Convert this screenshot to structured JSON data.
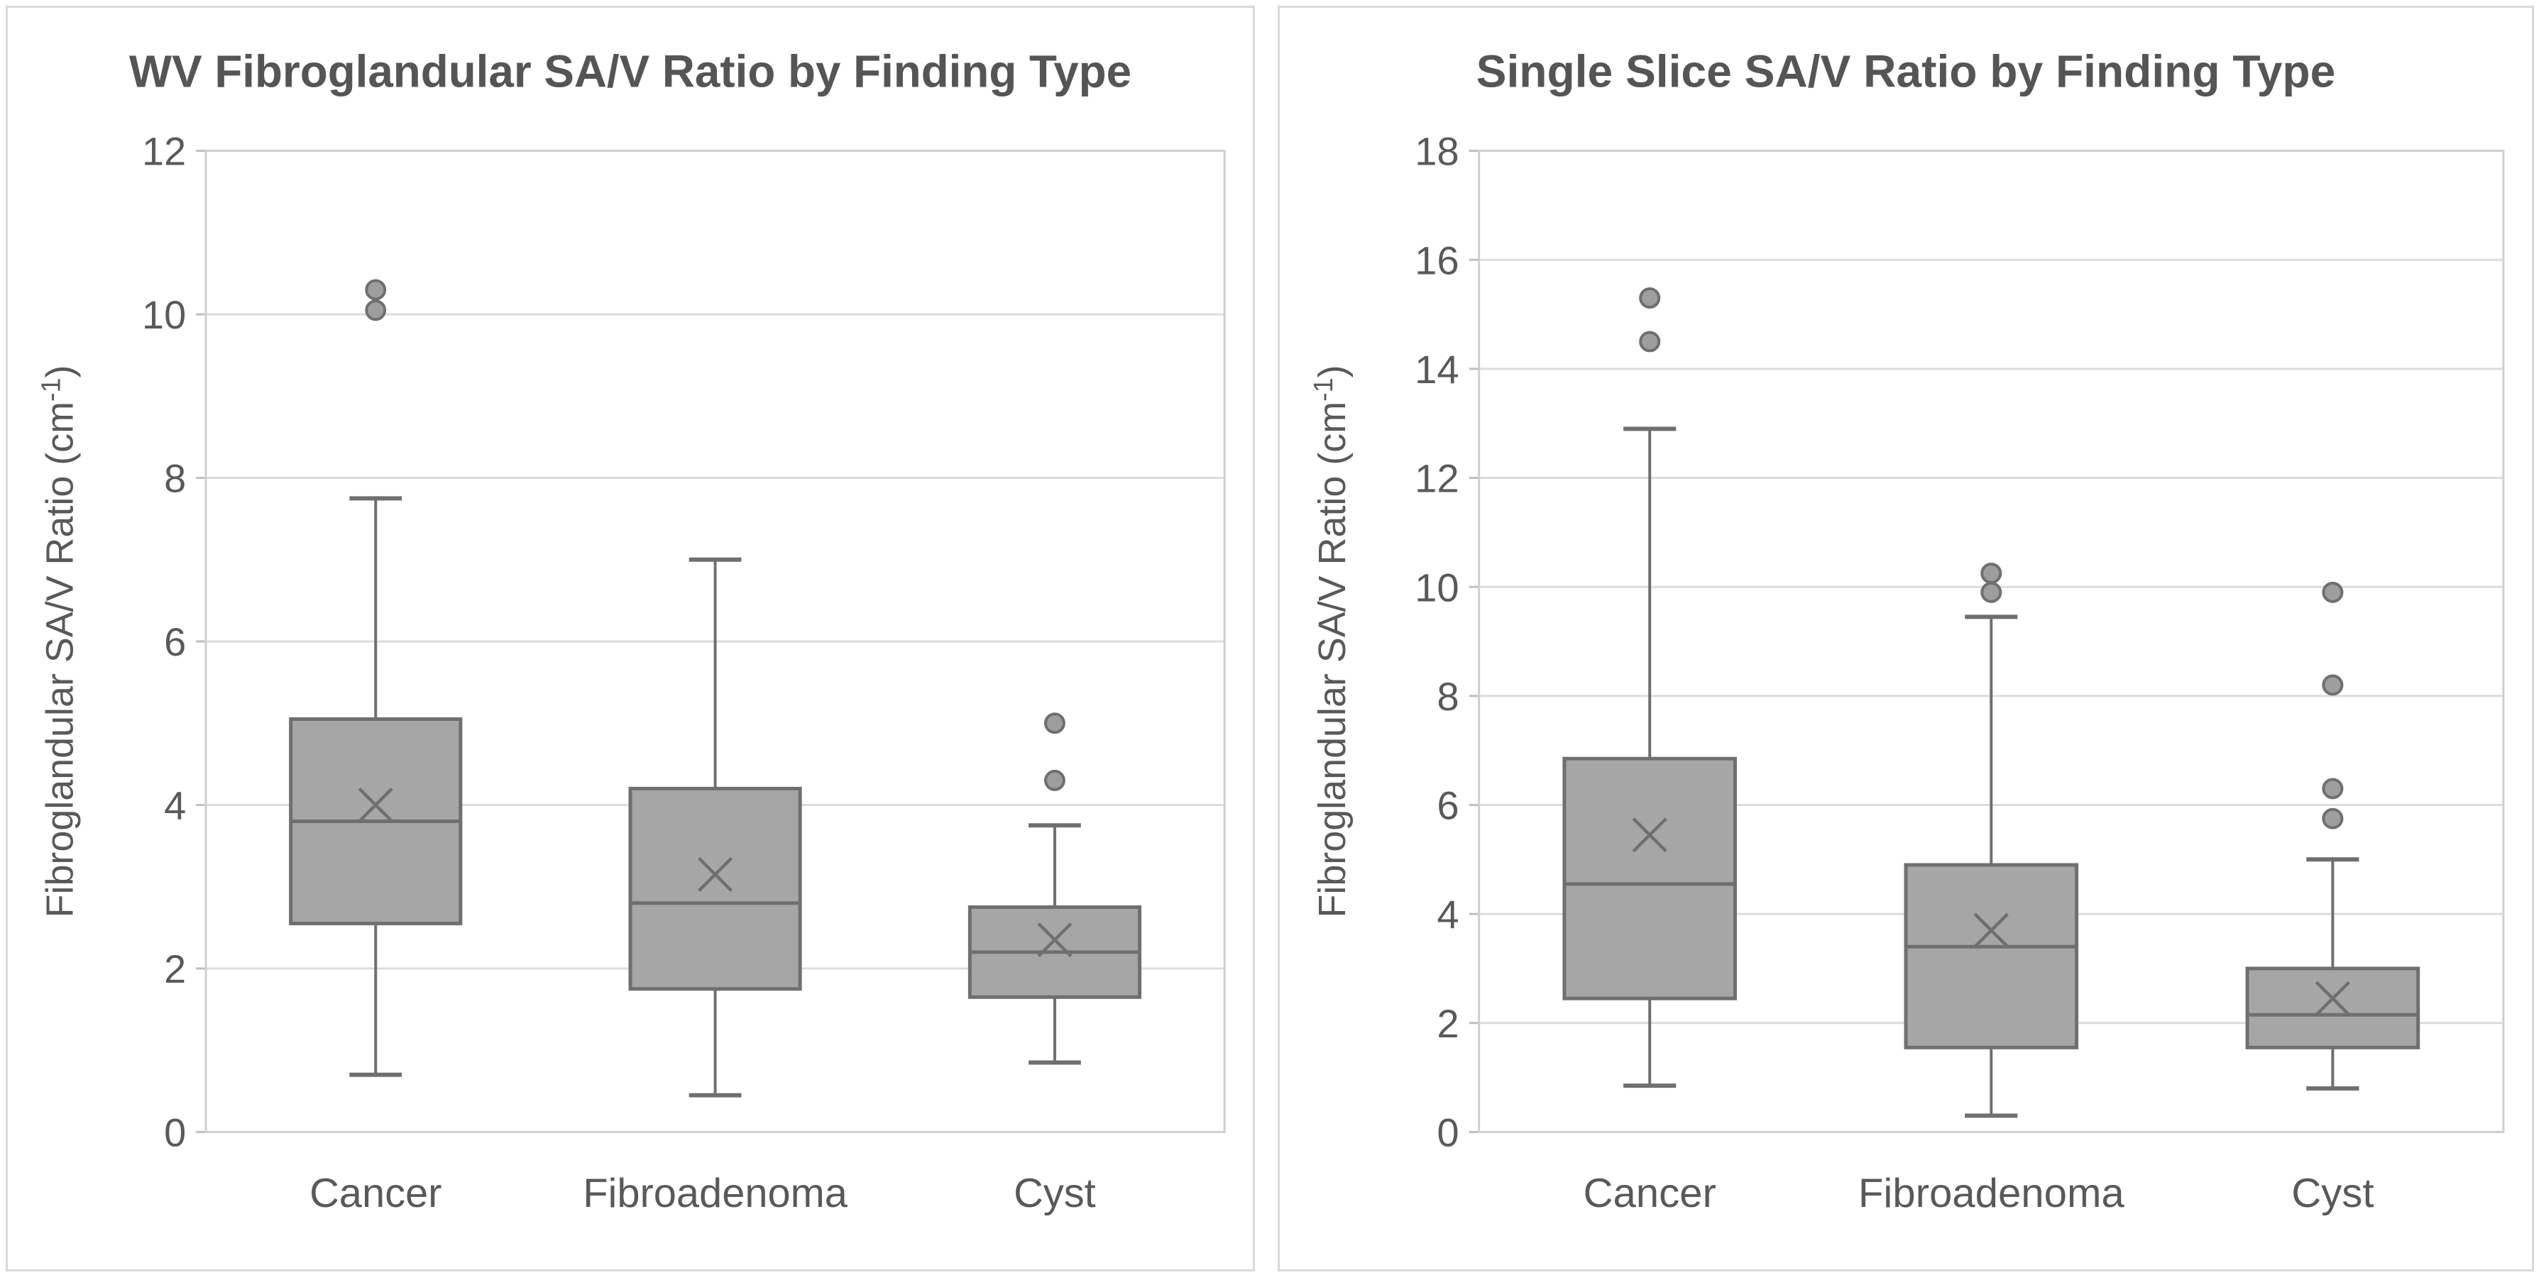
{
  "page": {
    "background": "#ffffff"
  },
  "chart_data": [
    {
      "type": "boxplot",
      "title": "WV Fibroglandular SA/V Ratio by Finding Type",
      "ylabel": "Fibroglandular SA/V Ratio (cm⁻¹)",
      "ylabel_parts": {
        "base": "Fibroglandular SA/V Ratio (cm",
        "sup": "-1",
        "close": ")"
      },
      "xlabel": "",
      "categories": [
        "Cancer",
        "Fibroadenoma",
        "Cyst"
      ],
      "ylim": [
        0,
        12
      ],
      "ytick_step": 2,
      "ytick_labels": [
        "0",
        "2",
        "4",
        "6",
        "8",
        "10",
        "12"
      ],
      "grid": true,
      "legend": "none",
      "series": [
        {
          "name": "Cancer",
          "whisker_low": 0.7,
          "q1": 2.55,
          "median": 3.8,
          "mean": 4.0,
          "q3": 5.05,
          "whisker_high": 7.75,
          "outliers": [
            10.05,
            10.3
          ]
        },
        {
          "name": "Fibroadenoma",
          "whisker_low": 0.45,
          "q1": 1.75,
          "median": 2.8,
          "mean": 3.15,
          "q3": 4.2,
          "whisker_high": 7.0,
          "outliers": []
        },
        {
          "name": "Cyst",
          "whisker_low": 0.85,
          "q1": 1.65,
          "median": 2.2,
          "mean": 2.35,
          "q3": 2.75,
          "whisker_high": 3.75,
          "outliers": [
            4.3,
            5.0
          ]
        }
      ]
    },
    {
      "type": "boxplot",
      "title": "Single Slice SA/V Ratio by Finding Type",
      "ylabel": "Fibroglandular SA/V Ratio (cm⁻¹)",
      "ylabel_parts": {
        "base": "Fibroglandular SA/V Ratio (cm",
        "sup": "-1",
        "close": ")"
      },
      "xlabel": "",
      "categories": [
        "Cancer",
        "Fibroadenoma",
        "Cyst"
      ],
      "ylim": [
        0,
        18
      ],
      "ytick_step": 2,
      "ytick_labels": [
        "0",
        "2",
        "4",
        "6",
        "8",
        "10",
        "12",
        "14",
        "16",
        "18"
      ],
      "grid": true,
      "legend": "none",
      "series": [
        {
          "name": "Cancer",
          "whisker_low": 0.85,
          "q1": 2.45,
          "median": 4.55,
          "mean": 5.45,
          "q3": 6.85,
          "whisker_high": 12.9,
          "outliers": [
            14.5,
            15.3
          ]
        },
        {
          "name": "Fibroadenoma",
          "whisker_low": 0.3,
          "q1": 1.55,
          "median": 3.4,
          "mean": 3.7,
          "q3": 4.9,
          "whisker_high": 9.45,
          "outliers": [
            9.9,
            10.25
          ]
        },
        {
          "name": "Cyst",
          "whisker_low": 0.8,
          "q1": 1.55,
          "median": 2.15,
          "mean": 2.45,
          "q3": 3.0,
          "whisker_high": 5.0,
          "outliers": [
            5.75,
            6.3,
            8.2,
            9.9
          ]
        }
      ]
    }
  ],
  "style": {
    "box_fill": "#a6a6a6",
    "box_stroke": "#6f6f6f",
    "median_color": "#6f6f6f",
    "mean_marker_color": "#6f6f6f",
    "outlier_fill": "#9e9e9e",
    "outlier_stroke": "#6f6f6f",
    "grid_color": "#dcdcdc",
    "plot_border_color": "#cfcfcf",
    "tick_mark_color": "#bfbfbf",
    "tick_label_color": "#595959",
    "category_label_color": "#595959",
    "axis_title_color": "#595959",
    "title_color": "#555555",
    "panel_border_color": "#d9d9d9",
    "panel_background": "#ffffff"
  }
}
